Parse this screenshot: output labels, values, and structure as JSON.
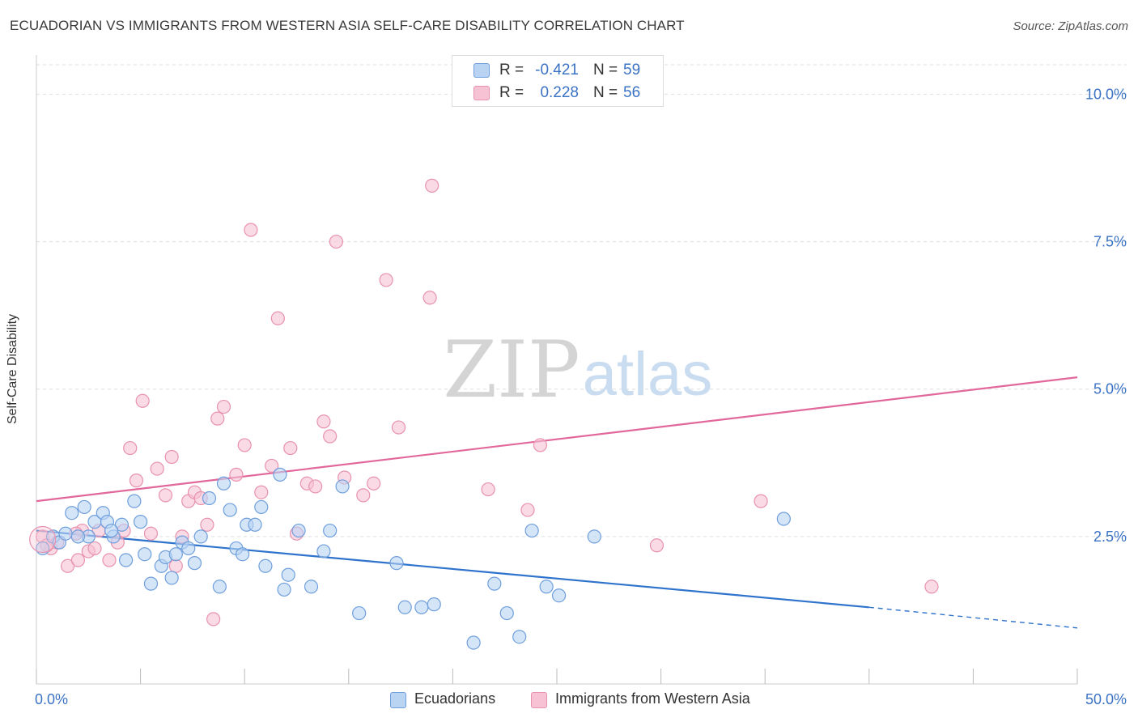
{
  "title": "ECUADORIAN VS IMMIGRANTS FROM WESTERN ASIA SELF-CARE DISABILITY CORRELATION CHART",
  "source": "Source: ZipAtlas.com",
  "watermark": {
    "zip": "ZIP",
    "atlas": "atlas"
  },
  "colors": {
    "blue_fill": "#b9d3f3",
    "blue_stroke": "#6f9fdc",
    "blue_line": "#2f73cc",
    "pink_fill": "#f7c2d3",
    "pink_stroke": "#e892ae",
    "pink_line": "#e2679a",
    "tick_text": "#3b73c4",
    "grid": "#dedede"
  },
  "stats": [
    {
      "r_label": "R =",
      "r_value": "-0.421",
      "n_label": "N =",
      "n_value": "59"
    },
    {
      "r_label": "R =",
      "r_value": "0.228",
      "n_label": "N =",
      "n_value": "56"
    }
  ],
  "legend": [
    "Ecuadorians",
    "Immigrants from Western Asia"
  ],
  "chart_data": {
    "type": "scatter",
    "title": "ECUADORIAN VS IMMIGRANTS FROM WESTERN ASIA SELF-CARE DISABILITY CORRELATION CHART",
    "xlabel": "",
    "ylabel": "Self-Care Disability",
    "xlim": [
      0,
      50
    ],
    "ylim": [
      0,
      10.5
    ],
    "x_tick_labels": [
      "0.0%",
      "50.0%"
    ],
    "y_ticks": [
      2.5,
      5.0,
      7.5,
      10.0
    ],
    "y_tick_labels": [
      "2.5%",
      "5.0%",
      "7.5%",
      "10.0%"
    ],
    "grid": "horizontal dashed",
    "legend_position": "bottom-center",
    "series": [
      {
        "name": "Ecuadorians",
        "trend": {
          "x": [
            0,
            40
          ],
          "y": [
            2.6,
            1.3
          ],
          "dashed_extension_to": [
            50,
            0.95
          ]
        },
        "points": [
          [
            0.3,
            2.3
          ],
          [
            0.8,
            2.5
          ],
          [
            1.1,
            2.4
          ],
          [
            1.4,
            2.55
          ],
          [
            1.7,
            2.9
          ],
          [
            2.3,
            3.0
          ],
          [
            2.5,
            2.5
          ],
          [
            2.8,
            2.75
          ],
          [
            3.2,
            2.9
          ],
          [
            3.4,
            2.75
          ],
          [
            3.7,
            2.5
          ],
          [
            4.1,
            2.7
          ],
          [
            4.3,
            2.1
          ],
          [
            4.7,
            3.1
          ],
          [
            5.0,
            2.75
          ],
          [
            5.2,
            2.2
          ],
          [
            5.5,
            1.7
          ],
          [
            6.0,
            2.0
          ],
          [
            6.2,
            2.15
          ],
          [
            6.5,
            1.8
          ],
          [
            6.7,
            2.2
          ],
          [
            7.0,
            2.4
          ],
          [
            7.3,
            2.3
          ],
          [
            7.6,
            2.05
          ],
          [
            7.9,
            2.5
          ],
          [
            8.3,
            3.15
          ],
          [
            8.8,
            1.65
          ],
          [
            9.0,
            3.4
          ],
          [
            9.3,
            2.95
          ],
          [
            9.6,
            2.3
          ],
          [
            9.9,
            2.2
          ],
          [
            10.1,
            2.7
          ],
          [
            10.5,
            2.7
          ],
          [
            10.8,
            3.0
          ],
          [
            11.0,
            2.0
          ],
          [
            11.7,
            3.55
          ],
          [
            11.9,
            1.6
          ],
          [
            12.1,
            1.85
          ],
          [
            12.6,
            2.6
          ],
          [
            13.2,
            1.65
          ],
          [
            13.8,
            2.25
          ],
          [
            14.1,
            2.6
          ],
          [
            14.7,
            3.35
          ],
          [
            15.5,
            1.2
          ],
          [
            17.3,
            2.05
          ],
          [
            17.7,
            1.3
          ],
          [
            18.5,
            1.3
          ],
          [
            19.1,
            1.35
          ],
          [
            21.0,
            0.7
          ],
          [
            22.0,
            1.7
          ],
          [
            22.6,
            1.2
          ],
          [
            23.2,
            0.8
          ],
          [
            23.8,
            2.6
          ],
          [
            24.5,
            1.65
          ],
          [
            25.1,
            1.5
          ],
          [
            26.8,
            2.5
          ],
          [
            35.9,
            2.8
          ],
          [
            2.0,
            2.5
          ],
          [
            3.6,
            2.6
          ]
        ]
      },
      {
        "name": "Immigrants from Western Asia",
        "trend": {
          "x": [
            0,
            50
          ],
          "y": [
            3.1,
            5.2
          ]
        },
        "points": [
          [
            0.3,
            2.5
          ],
          [
            0.7,
            2.3
          ],
          [
            1.0,
            2.4
          ],
          [
            1.5,
            2.0
          ],
          [
            2.0,
            2.1
          ],
          [
            2.2,
            2.6
          ],
          [
            2.5,
            2.25
          ],
          [
            2.8,
            2.3
          ],
          [
            3.0,
            2.6
          ],
          [
            3.5,
            2.1
          ],
          [
            3.9,
            2.4
          ],
          [
            4.2,
            2.6
          ],
          [
            4.5,
            4.0
          ],
          [
            4.8,
            3.45
          ],
          [
            5.1,
            4.8
          ],
          [
            5.5,
            2.55
          ],
          [
            5.8,
            3.65
          ],
          [
            6.2,
            3.2
          ],
          [
            6.5,
            3.85
          ],
          [
            6.7,
            2.0
          ],
          [
            7.0,
            2.5
          ],
          [
            7.3,
            3.1
          ],
          [
            7.6,
            3.25
          ],
          [
            7.9,
            3.15
          ],
          [
            8.2,
            2.7
          ],
          [
            8.5,
            1.1
          ],
          [
            8.7,
            4.5
          ],
          [
            9.0,
            4.7
          ],
          [
            9.6,
            3.55
          ],
          [
            10.0,
            4.05
          ],
          [
            10.3,
            7.7
          ],
          [
            10.8,
            3.25
          ],
          [
            11.3,
            3.7
          ],
          [
            11.6,
            6.2
          ],
          [
            12.2,
            4.0
          ],
          [
            12.5,
            2.55
          ],
          [
            13.0,
            3.4
          ],
          [
            13.4,
            3.35
          ],
          [
            13.8,
            4.45
          ],
          [
            14.1,
            4.2
          ],
          [
            14.4,
            7.5
          ],
          [
            14.8,
            3.5
          ],
          [
            15.7,
            3.2
          ],
          [
            16.2,
            3.4
          ],
          [
            16.8,
            6.85
          ],
          [
            17.4,
            4.35
          ],
          [
            18.9,
            6.55
          ],
          [
            19.0,
            8.45
          ],
          [
            21.7,
            3.3
          ],
          [
            23.6,
            2.95
          ],
          [
            24.2,
            4.05
          ],
          [
            29.8,
            2.35
          ],
          [
            34.8,
            3.1
          ],
          [
            43.0,
            1.65
          ],
          [
            0.5,
            2.35
          ],
          [
            1.9,
            2.55
          ]
        ]
      }
    ]
  }
}
